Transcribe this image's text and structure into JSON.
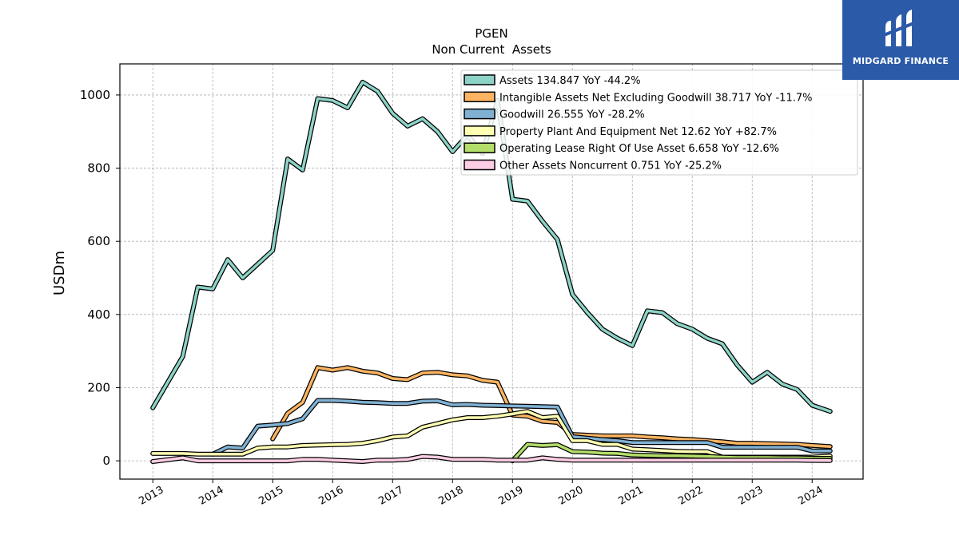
{
  "chart_data": {
    "type": "line",
    "title": "PGEN",
    "subtitle": "Non Current  Assets",
    "ylabel": "USDm",
    "xlabel": "",
    "ylim": [
      -50,
      1085
    ],
    "xlim": [
      2012.45,
      2024.85
    ],
    "yticks": [
      0,
      200,
      400,
      600,
      800,
      1000
    ],
    "xticks": [
      2013,
      2014,
      2015,
      2016,
      2017,
      2018,
      2019,
      2020,
      2021,
      2022,
      2023,
      2024
    ],
    "grid": true,
    "legend_position": "top-right",
    "series": [
      {
        "name": "Assets  134.847 YoY -44.2%",
        "color": "#8dd3c7",
        "points": [
          [
            2013.0,
            145
          ],
          [
            2013.5,
            285
          ],
          [
            2013.75,
            475
          ],
          [
            2014.0,
            470
          ],
          [
            2014.25,
            550
          ],
          [
            2014.5,
            500
          ],
          [
            2015.0,
            575
          ],
          [
            2015.25,
            825
          ],
          [
            2015.5,
            795
          ],
          [
            2015.75,
            990
          ],
          [
            2016.0,
            985
          ],
          [
            2016.25,
            965
          ],
          [
            2016.5,
            1035
          ],
          [
            2016.75,
            1010
          ],
          [
            2017.0,
            950
          ],
          [
            2017.25,
            915
          ],
          [
            2017.5,
            935
          ],
          [
            2017.75,
            900
          ],
          [
            2018.0,
            845
          ],
          [
            2018.25,
            890
          ],
          [
            2018.5,
            840
          ],
          [
            2018.75,
            985
          ],
          [
            2019.0,
            715
          ],
          [
            2019.25,
            710
          ],
          [
            2019.5,
            655
          ],
          [
            2019.75,
            605
          ],
          [
            2020.0,
            455
          ],
          [
            2020.25,
            405
          ],
          [
            2020.5,
            360
          ],
          [
            2020.75,
            335
          ],
          [
            2021.0,
            315
          ],
          [
            2021.25,
            410
          ],
          [
            2021.5,
            405
          ],
          [
            2021.75,
            375
          ],
          [
            2022.0,
            360
          ],
          [
            2022.25,
            335
          ],
          [
            2022.5,
            320
          ],
          [
            2022.75,
            262
          ],
          [
            2023.0,
            215
          ],
          [
            2023.25,
            242
          ],
          [
            2023.5,
            210
          ],
          [
            2023.75,
            195
          ],
          [
            2024.0,
            152
          ],
          [
            2024.3,
            135
          ]
        ]
      },
      {
        "name": "Intangible Assets Net Excluding Goodwill  38.717 YoY -11.7%",
        "color": "#fdb462",
        "points": [
          [
            2015.0,
            60
          ],
          [
            2015.25,
            130
          ],
          [
            2015.5,
            160
          ],
          [
            2015.75,
            255
          ],
          [
            2016.0,
            248
          ],
          [
            2016.25,
            255
          ],
          [
            2016.5,
            245
          ],
          [
            2016.75,
            240
          ],
          [
            2017.0,
            225
          ],
          [
            2017.25,
            222
          ],
          [
            2017.5,
            240
          ],
          [
            2017.75,
            242
          ],
          [
            2018.0,
            235
          ],
          [
            2018.25,
            232
          ],
          [
            2018.5,
            220
          ],
          [
            2018.75,
            215
          ],
          [
            2019.0,
            125
          ],
          [
            2019.25,
            122
          ],
          [
            2019.5,
            108
          ],
          [
            2019.75,
            105
          ],
          [
            2020.0,
            72
          ],
          [
            2020.25,
            70
          ],
          [
            2020.5,
            68
          ],
          [
            2020.75,
            68
          ],
          [
            2021.0,
            68
          ],
          [
            2021.25,
            65
          ],
          [
            2021.5,
            63
          ],
          [
            2021.75,
            60
          ],
          [
            2022.0,
            58
          ],
          [
            2022.25,
            55
          ],
          [
            2022.5,
            52
          ],
          [
            2022.75,
            48
          ],
          [
            2023.0,
            48
          ],
          [
            2023.25,
            47
          ],
          [
            2023.5,
            46
          ],
          [
            2023.75,
            45
          ],
          [
            2024.0,
            42
          ],
          [
            2024.3,
            39
          ]
        ]
      },
      {
        "name": "Goodwill  26.555 YoY -28.2%",
        "color": "#80b1d3",
        "points": [
          [
            2014.0,
            18
          ],
          [
            2014.25,
            38
          ],
          [
            2014.5,
            35
          ],
          [
            2014.75,
            95
          ],
          [
            2015.0,
            98
          ],
          [
            2015.25,
            102
          ],
          [
            2015.5,
            115
          ],
          [
            2015.75,
            165
          ],
          [
            2016.0,
            165
          ],
          [
            2016.25,
            163
          ],
          [
            2016.5,
            160
          ],
          [
            2016.75,
            159
          ],
          [
            2017.0,
            157
          ],
          [
            2017.25,
            157
          ],
          [
            2017.5,
            163
          ],
          [
            2017.75,
            164
          ],
          [
            2018.0,
            153
          ],
          [
            2018.25,
            154
          ],
          [
            2018.5,
            152
          ],
          [
            2018.75,
            151
          ],
          [
            2019.0,
            150
          ],
          [
            2019.25,
            149
          ],
          [
            2019.5,
            148
          ],
          [
            2019.75,
            147
          ],
          [
            2020.0,
            66
          ],
          [
            2020.25,
            62
          ],
          [
            2020.5,
            58
          ],
          [
            2020.75,
            55
          ],
          [
            2021.0,
            50
          ],
          [
            2021.25,
            50
          ],
          [
            2021.5,
            50
          ],
          [
            2021.75,
            50
          ],
          [
            2022.0,
            50
          ],
          [
            2022.25,
            50
          ],
          [
            2022.5,
            37
          ],
          [
            2022.75,
            37
          ],
          [
            2023.0,
            37
          ],
          [
            2023.25,
            37
          ],
          [
            2023.5,
            37
          ],
          [
            2023.75,
            37
          ],
          [
            2024.0,
            27
          ],
          [
            2024.3,
            27
          ]
        ]
      },
      {
        "name": "Property Plant And Equipment Net  12.62 YoY +82.7%",
        "color": "#ffffb3",
        "points": [
          [
            2013.0,
            20
          ],
          [
            2013.5,
            20
          ],
          [
            2013.75,
            18
          ],
          [
            2014.0,
            18
          ],
          [
            2014.25,
            18
          ],
          [
            2014.5,
            18
          ],
          [
            2014.75,
            35
          ],
          [
            2015.0,
            38
          ],
          [
            2015.25,
            38
          ],
          [
            2015.5,
            42
          ],
          [
            2015.75,
            43
          ],
          [
            2016.0,
            44
          ],
          [
            2016.25,
            45
          ],
          [
            2016.5,
            48
          ],
          [
            2016.75,
            55
          ],
          [
            2017.0,
            65
          ],
          [
            2017.25,
            68
          ],
          [
            2017.5,
            92
          ],
          [
            2017.75,
            102
          ],
          [
            2018.0,
            112
          ],
          [
            2018.25,
            118
          ],
          [
            2018.5,
            118
          ],
          [
            2018.75,
            122
          ],
          [
            2019.0,
            128
          ],
          [
            2019.25,
            135
          ],
          [
            2019.5,
            118
          ],
          [
            2019.75,
            122
          ],
          [
            2020.0,
            55
          ],
          [
            2020.25,
            55
          ],
          [
            2020.5,
            45
          ],
          [
            2020.75,
            45
          ],
          [
            2021.0,
            32
          ],
          [
            2021.25,
            30
          ],
          [
            2021.5,
            28
          ],
          [
            2021.75,
            26
          ],
          [
            2022.0,
            25
          ],
          [
            2022.25,
            25
          ],
          [
            2022.5,
            10
          ],
          [
            2022.75,
            10
          ],
          [
            2023.0,
            10
          ],
          [
            2023.25,
            10
          ],
          [
            2023.5,
            10
          ],
          [
            2023.75,
            10
          ],
          [
            2024.0,
            10
          ],
          [
            2024.3,
            13
          ]
        ]
      },
      {
        "name": "Operating Lease Right Of Use Asset  6.658 YoY -12.6%",
        "color": "#b3de69",
        "points": [
          [
            2019.0,
            0
          ],
          [
            2019.25,
            45
          ],
          [
            2019.5,
            42
          ],
          [
            2019.75,
            44
          ],
          [
            2020.0,
            25
          ],
          [
            2020.25,
            24
          ],
          [
            2020.5,
            21
          ],
          [
            2020.75,
            20
          ],
          [
            2021.0,
            16
          ],
          [
            2021.25,
            15
          ],
          [
            2021.5,
            14
          ],
          [
            2021.75,
            14
          ],
          [
            2022.0,
            13
          ],
          [
            2022.25,
            12
          ],
          [
            2022.5,
            10
          ],
          [
            2022.75,
            9
          ],
          [
            2023.0,
            9
          ],
          [
            2023.25,
            9
          ],
          [
            2023.5,
            8
          ],
          [
            2023.75,
            8
          ],
          [
            2024.0,
            7
          ],
          [
            2024.3,
            6.7
          ]
        ]
      },
      {
        "name": "Other Assets Noncurrent  0.751 YoY -25.2%",
        "color": "#fccde5",
        "points": [
          [
            2013.0,
            -2
          ],
          [
            2013.5,
            8
          ],
          [
            2013.75,
            0
          ],
          [
            2014.0,
            0
          ],
          [
            2014.25,
            0
          ],
          [
            2014.5,
            0
          ],
          [
            2014.75,
            0
          ],
          [
            2015.0,
            0
          ],
          [
            2015.25,
            0
          ],
          [
            2015.5,
            4
          ],
          [
            2015.75,
            4
          ],
          [
            2016.0,
            2
          ],
          [
            2016.25,
            0
          ],
          [
            2016.5,
            -2
          ],
          [
            2016.75,
            2
          ],
          [
            2017.0,
            2
          ],
          [
            2017.25,
            4
          ],
          [
            2017.5,
            12
          ],
          [
            2017.75,
            10
          ],
          [
            2018.0,
            4
          ],
          [
            2018.25,
            4
          ],
          [
            2018.5,
            4
          ],
          [
            2018.75,
            2
          ],
          [
            2019.0,
            2
          ],
          [
            2019.25,
            2
          ],
          [
            2019.5,
            8
          ],
          [
            2019.75,
            4
          ],
          [
            2020.0,
            2
          ],
          [
            2020.25,
            2
          ],
          [
            2020.5,
            2
          ],
          [
            2020.75,
            2
          ],
          [
            2021.0,
            2
          ],
          [
            2021.25,
            2
          ],
          [
            2021.5,
            2
          ],
          [
            2021.75,
            2
          ],
          [
            2022.0,
            2
          ],
          [
            2022.25,
            2
          ],
          [
            2022.5,
            2
          ],
          [
            2022.75,
            2
          ],
          [
            2023.0,
            2
          ],
          [
            2023.25,
            2
          ],
          [
            2023.5,
            2
          ],
          [
            2023.75,
            2
          ],
          [
            2024.0,
            1
          ],
          [
            2024.3,
            0.75
          ]
        ]
      }
    ]
  },
  "logo": {
    "text": "MIDGARD FINANCE"
  }
}
